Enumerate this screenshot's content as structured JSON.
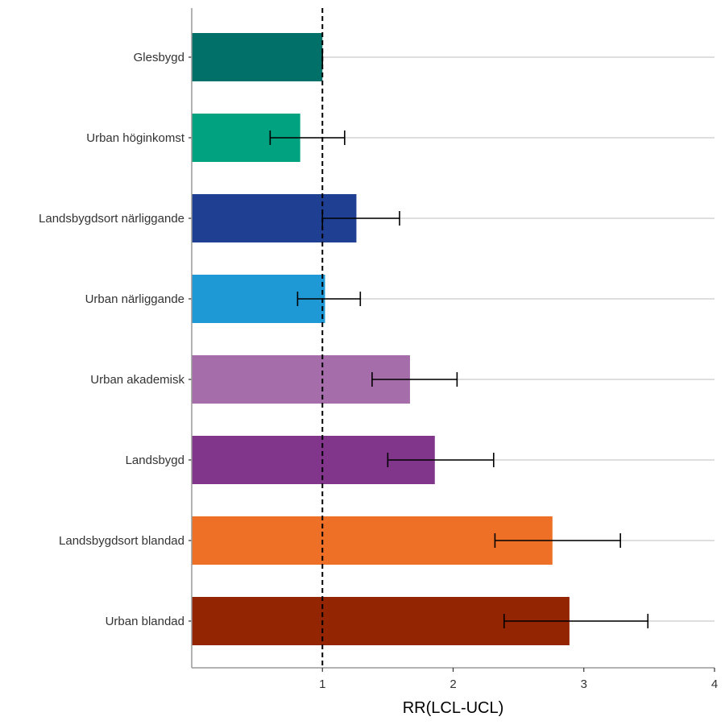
{
  "chart_data": {
    "type": "bar",
    "orientation": "horizontal",
    "title": "",
    "xlabel": "RR(LCL-UCL)",
    "ylabel": "",
    "xlim": [
      0,
      4
    ],
    "xticks": [
      1,
      2,
      3,
      4
    ],
    "xtick_labels": [
      "1",
      "2",
      "3",
      "4"
    ],
    "reference_line": 1,
    "grid": "horizontal major lines only",
    "legend": "none",
    "categories": [
      "Glesbygd",
      "Urban höginkomst",
      "Landsbygdsort närliggande",
      "Urban närliggande",
      "Urban akademisk",
      "Landsbygd",
      "Landsbygdsort blandad",
      "Urban blandad"
    ],
    "values": [
      1.0,
      0.83,
      1.26,
      1.02,
      1.67,
      1.86,
      2.76,
      2.89
    ],
    "lcl": [
      1.0,
      0.6,
      1.0,
      0.81,
      1.38,
      1.5,
      2.32,
      2.39
    ],
    "ucl": [
      1.0,
      1.17,
      1.59,
      1.29,
      2.03,
      2.31,
      3.28,
      3.49
    ],
    "colors": [
      "#007068",
      "#00A27F",
      "#1F3F93",
      "#1E99D6",
      "#A66DAB",
      "#81368C",
      "#ED7026",
      "#942502"
    ]
  }
}
